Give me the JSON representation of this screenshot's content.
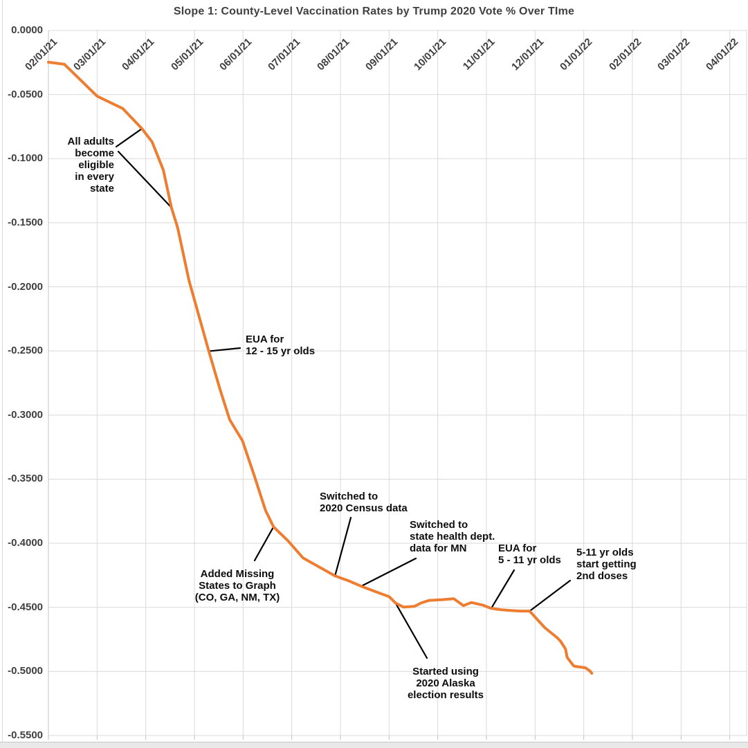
{
  "title": "Slope 1: County-Level Vaccination Rates by Trump 2020 Vote % Over TIme",
  "colors": {
    "series_line": "#ED7D31",
    "gridline": "#D9D9D9",
    "axis_text": "#404040",
    "annotation_text": "#0D0D0D",
    "leader_line": "#000000",
    "background": "#FFFFFF"
  },
  "chart_data": {
    "type": "line",
    "title": "Slope 1: County-Level Vaccination Rates by Trump 2020 Vote % Over TIme",
    "grid": true,
    "legend": "none",
    "x_axis": {
      "tick_labels": [
        "02/01/21",
        "03/01/21",
        "04/01/21",
        "05/01/21",
        "06/01/21",
        "07/01/21",
        "08/01/21",
        "09/01/21",
        "10/01/21",
        "11/01/21",
        "12/01/21",
        "01/01/22",
        "02/01/22",
        "03/01/22",
        "04/01/22"
      ],
      "label_rotation_deg": 45,
      "range": [
        "02/01/21",
        "04/12/22"
      ]
    },
    "y_axis": {
      "tick_labels": [
        "0.0000",
        "-0.0500",
        "-0.1000",
        "-0.1500",
        "-0.2000",
        "-0.2500",
        "-0.3000",
        "-0.3500",
        "-0.4000",
        "-0.4500",
        "-0.5000",
        "-0.5500"
      ],
      "max": 0.0,
      "min": -0.55,
      "step": -0.05
    },
    "series": [
      {
        "name": "Slope 1",
        "color": "#ED7D31",
        "points": [
          [
            "02/01/21",
            -0.0248
          ],
          [
            "02/11/21",
            -0.0264
          ],
          [
            "03/01/21",
            -0.0512
          ],
          [
            "03/17/21",
            -0.0609
          ],
          [
            "03/29/21",
            -0.0766
          ],
          [
            "04/05/21",
            -0.087
          ],
          [
            "04/12/21",
            -0.109
          ],
          [
            "04/17/21",
            -0.1381
          ],
          [
            "04/21/21",
            -0.1542
          ],
          [
            "04/28/21",
            -0.195
          ],
          [
            "05/10/21",
            -0.2502
          ],
          [
            "05/17/21",
            -0.28
          ],
          [
            "05/23/21",
            -0.3036
          ],
          [
            "05/31/21",
            -0.32
          ],
          [
            "06/08/21",
            -0.3473
          ],
          [
            "06/15/21",
            -0.3743
          ],
          [
            "06/20/21",
            -0.3872
          ],
          [
            "06/29/21",
            -0.398
          ],
          [
            "07/08/21",
            -0.4114
          ],
          [
            "07/18/21",
            -0.4184
          ],
          [
            "07/28/21",
            -0.4255
          ],
          [
            "08/06/21",
            -0.4292
          ],
          [
            "08/14/21",
            -0.4335
          ],
          [
            "08/23/21",
            -0.4378
          ],
          [
            "09/01/21",
            -0.4416
          ],
          [
            "09/05/21",
            -0.4466
          ],
          [
            "09/10/21",
            -0.4498
          ],
          [
            "09/17/21",
            -0.4492
          ],
          [
            "09/21/21",
            -0.4466
          ],
          [
            "09/26/21",
            -0.4446
          ],
          [
            "10/04/21",
            -0.444
          ],
          [
            "10/11/21",
            -0.4433
          ],
          [
            "10/17/21",
            -0.4487
          ],
          [
            "10/22/21",
            -0.4462
          ],
          [
            "10/29/21",
            -0.4482
          ],
          [
            "11/04/21",
            -0.4508
          ],
          [
            "11/10/21",
            -0.4518
          ],
          [
            "11/16/21",
            -0.4524
          ],
          [
            "11/22/21",
            -0.4529
          ],
          [
            "11/28/21",
            -0.4529
          ],
          [
            "12/07/21",
            -0.4658
          ],
          [
            "12/15/21",
            -0.4739
          ],
          [
            "12/17/21",
            -0.4766
          ],
          [
            "12/20/21",
            -0.4825
          ],
          [
            "12/21/21",
            -0.489
          ],
          [
            "12/25/21",
            -0.4955
          ],
          [
            "12/26/21",
            -0.496
          ],
          [
            "01/02/22",
            -0.4971
          ],
          [
            "01/05/22",
            -0.4998
          ],
          [
            "01/06/22",
            -0.5014
          ]
        ]
      }
    ],
    "annotations": [
      {
        "id": "all-adults",
        "lines": [
          "All adults",
          "become",
          "eligible",
          "in every",
          "state"
        ],
        "anchors": [
          {
            "date": "03/29/21",
            "value": -0.0766
          },
          {
            "date": "04/17/21",
            "value": -0.1381
          }
        ]
      },
      {
        "id": "eua-12-15",
        "lines": [
          "EUA for",
          "12 - 15 yr olds"
        ],
        "anchors": [
          {
            "date": "05/10/21",
            "value": -0.2502
          }
        ]
      },
      {
        "id": "added-missing-states",
        "lines": [
          "Added Missing",
          "States to Graph",
          "(CO, GA, NM, TX)"
        ],
        "anchors": [
          {
            "date": "06/20/21",
            "value": -0.3872
          }
        ]
      },
      {
        "id": "census-2020",
        "lines": [
          "Switched to",
          "2020 Census data"
        ],
        "anchors": [
          {
            "date": "07/28/21",
            "value": -0.4255
          }
        ]
      },
      {
        "id": "mn-health-dept",
        "lines": [
          "Switched to",
          "state health dept.",
          "data for MN"
        ],
        "anchors": [
          {
            "date": "08/14/21",
            "value": -0.4335
          }
        ]
      },
      {
        "id": "eua-5-11",
        "lines": [
          "EUA for",
          "5 - 11 yr olds"
        ],
        "anchors": [
          {
            "date": "11/04/21",
            "value": -0.4508
          }
        ]
      },
      {
        "id": "second-doses-5-11",
        "lines": [
          "5-11 yr olds",
          "start getting",
          "2nd doses"
        ],
        "anchors": [
          {
            "date": "11/28/21",
            "value": -0.4529
          }
        ]
      },
      {
        "id": "alaska-2020",
        "lines": [
          "Started using",
          "2020 Alaska",
          "election results"
        ],
        "anchors": [
          {
            "date": "09/05/21",
            "value": -0.4466
          }
        ]
      }
    ]
  }
}
